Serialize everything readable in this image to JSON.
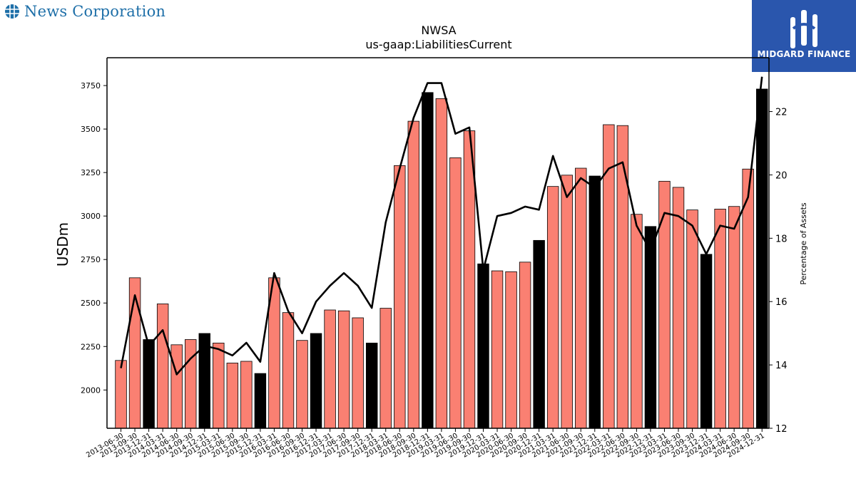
{
  "header": {
    "company_name": "News Corporation",
    "company_icon": "globe-icon",
    "partner_logo_text": "MIDGARD FINANCE",
    "partner_logo_icon": "midgard-mark-icon",
    "brand_color": "#1e6fa8",
    "logo_bg_color": "#2a56ad"
  },
  "chart_data": {
    "type": "bar",
    "title": "NWSA",
    "subtitle": "us-gaap:LiabilitiesCurrent",
    "ylabel": "USDm",
    "y2label": "Percentage of Assets",
    "ylim": [
      1780,
      3910
    ],
    "y2lim": [
      12.0,
      23.7
    ],
    "yticks": [
      2000,
      2250,
      2500,
      2750,
      3000,
      3250,
      3500,
      3750
    ],
    "y2ticks": [
      12,
      14,
      16,
      18,
      20,
      22
    ],
    "categories": [
      "2013-06-30",
      "2013-09-30",
      "2013-12-31",
      "2014-03-31",
      "2014-06-30",
      "2014-09-30",
      "2014-12-31",
      "2015-03-31",
      "2015-06-30",
      "2015-09-30",
      "2015-12-31",
      "2016-03-31",
      "2016-06-30",
      "2016-09-30",
      "2016-12-31",
      "2017-03-31",
      "2017-06-30",
      "2017-09-30",
      "2017-12-31",
      "2018-03-31",
      "2018-06-30",
      "2018-09-30",
      "2018-12-31",
      "2019-03-31",
      "2019-06-30",
      "2019-09-30",
      "2019-12-31",
      "2020-03-31",
      "2020-06-30",
      "2020-09-30",
      "2020-12-31",
      "2021-03-31",
      "2021-06-30",
      "2021-09-30",
      "2021-12-31",
      "2022-03-31",
      "2022-06-30",
      "2022-09-30",
      "2022-12-31",
      "2023-03-31",
      "2023-06-30",
      "2023-09-30",
      "2023-12-31",
      "2024-03-31",
      "2024-06-30",
      "2024-09-30",
      "2024-12-31"
    ],
    "series": [
      {
        "kind": "bar",
        "values": [
          2170,
          2645,
          2290,
          2495,
          2260,
          2290,
          2325,
          2270,
          2155,
          2165,
          2095,
          2645,
          2445,
          2285,
          2325,
          2460,
          2455,
          2415,
          2270,
          2470,
          3290,
          3545,
          3710,
          3675,
          3335,
          3490,
          2725,
          2685,
          2680,
          2735,
          2860,
          3170,
          3235,
          3275,
          3230,
          3525,
          3520,
          3010,
          2940,
          3200,
          3165,
          3035,
          2780,
          3040,
          3055,
          3270,
          3730
        ],
        "highlight": [
          false,
          false,
          true,
          false,
          false,
          false,
          true,
          false,
          false,
          false,
          true,
          false,
          false,
          false,
          true,
          false,
          false,
          false,
          true,
          false,
          false,
          false,
          true,
          false,
          false,
          false,
          true,
          false,
          false,
          false,
          true,
          false,
          false,
          false,
          true,
          false,
          false,
          false,
          true,
          false,
          false,
          false,
          true,
          false,
          false,
          false,
          true
        ],
        "color": "#fa8072",
        "highlight_color": "#000000"
      },
      {
        "kind": "line",
        "axis": "right",
        "values": [
          13.9,
          16.2,
          14.6,
          15.1,
          13.7,
          14.2,
          14.6,
          14.5,
          14.3,
          14.7,
          14.1,
          16.9,
          15.7,
          15.0,
          16.0,
          16.5,
          16.9,
          16.5,
          15.8,
          18.5,
          20.2,
          21.8,
          22.9,
          22.9,
          21.3,
          21.5,
          17.0,
          18.7,
          18.8,
          19.0,
          18.9,
          20.6,
          19.3,
          19.9,
          19.6,
          20.2,
          20.4,
          18.4,
          17.6,
          18.8,
          18.7,
          18.4,
          17.5,
          18.4,
          18.3,
          19.3,
          23.1
        ],
        "color": "#000000"
      }
    ]
  }
}
